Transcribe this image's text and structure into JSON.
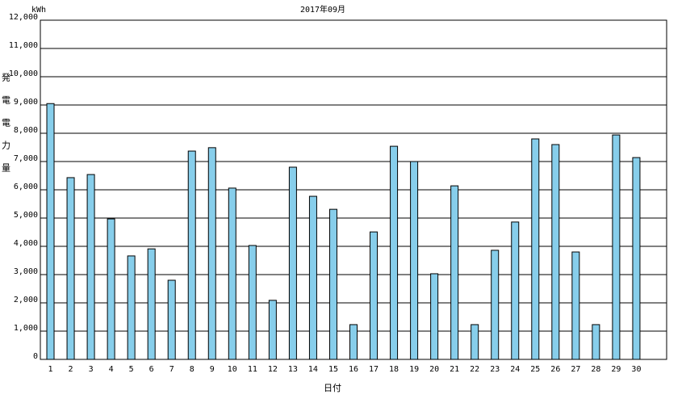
{
  "chart_data": {
    "type": "bar",
    "title": "2017年09月",
    "unit_label": "kWh",
    "y_label": "発電電力量",
    "x_label": "日付",
    "categories": [
      "1",
      "2",
      "3",
      "4",
      "5",
      "6",
      "7",
      "8",
      "9",
      "10",
      "11",
      "12",
      "13",
      "14",
      "15",
      "16",
      "17",
      "18",
      "19",
      "20",
      "21",
      "22",
      "23",
      "24",
      "25",
      "26",
      "27",
      "28",
      "29",
      "30",
      null
    ],
    "values": [
      9050,
      6430,
      6540,
      4970,
      3660,
      3910,
      2800,
      7370,
      7490,
      6060,
      4030,
      2090,
      6800,
      5770,
      5310,
      1230,
      4510,
      7540,
      7000,
      3030,
      6140,
      1230,
      3860,
      4860,
      7800,
      7600,
      3800,
      1230,
      7940,
      7140,
      null
    ],
    "color": "#87ceeb",
    "ylim": [
      0,
      12000
    ],
    "yticks": [
      0,
      {
        "value": 1000,
        "label": "1,000"
      },
      {
        "value": 2000,
        "label": "2,000"
      },
      {
        "value": 3000,
        "label": "3,000"
      },
      {
        "value": 4000,
        "label": "4,000"
      },
      {
        "value": 5000,
        "label": "5,000"
      },
      {
        "value": 6000,
        "label": "6,000"
      },
      {
        "value": 7000,
        "label": "7,000"
      },
      {
        "value": 8000,
        "label": "8,000"
      },
      {
        "value": 9000,
        "label": "9,000"
      },
      {
        "value": 10000,
        "label": "10,000"
      },
      {
        "value": 11000,
        "label": "11,000"
      },
      {
        "value": 12000,
        "label": "12,000"
      }
    ],
    "grid": true
  }
}
